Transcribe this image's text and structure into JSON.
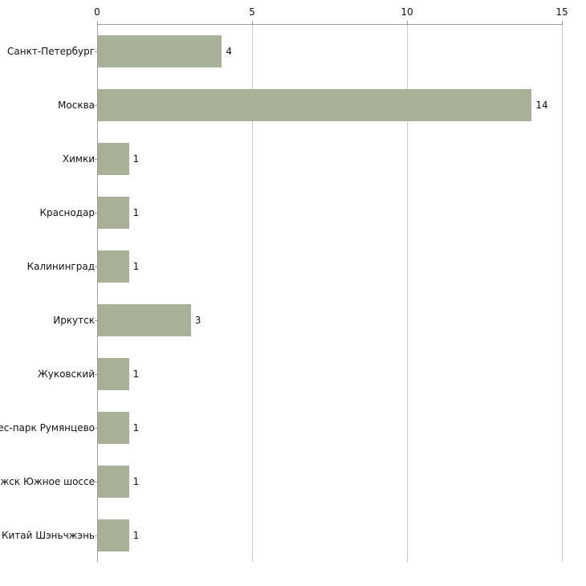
{
  "chart_data": {
    "type": "bar",
    "orientation": "horizontal",
    "title": "",
    "categories": [
      "Санкт-Петербург",
      "Москва",
      "Химки",
      "Краснодар",
      "Калининград",
      "Иркутск",
      "Жуковский",
      "знес-парк Румянцево",
      "оложск Южное шоссе",
      "Китай Шэньчжэнь"
    ],
    "values": [
      4,
      14,
      1,
      1,
      1,
      3,
      1,
      1,
      1,
      1
    ],
    "value_labels": [
      "4",
      "14",
      "1",
      "1",
      "1",
      "3",
      "1",
      "1",
      "1",
      "1"
    ],
    "xlim": [
      0,
      15
    ],
    "xticks": [
      0,
      5,
      10,
      15
    ],
    "xtick_labels": [
      "0",
      "5",
      "10",
      "15"
    ],
    "axis_position": "top",
    "grid": true,
    "colors": {
      "bar": "#a8b198",
      "gridline": "#cccccc",
      "axis": "#9b9b9b",
      "text": "#111111",
      "background": "#ffffff"
    }
  }
}
